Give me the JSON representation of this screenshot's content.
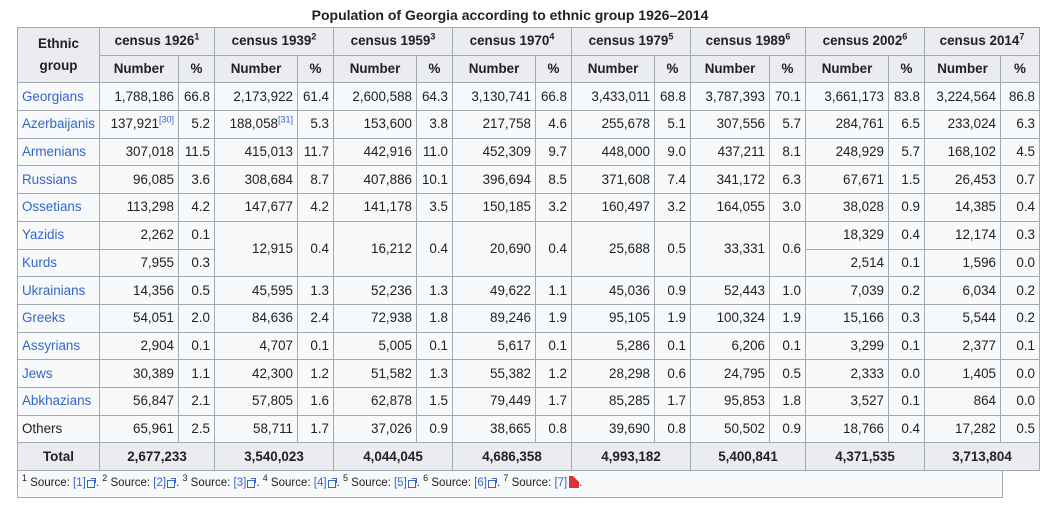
{
  "caption": "Population of Georgia according to ethnic group 1926–2014",
  "header": {
    "ethnic_group": "Ethnic group",
    "number": "Number",
    "percent": "%",
    "censuses": [
      {
        "label": "census 1926",
        "note": "1"
      },
      {
        "label": "census 1939",
        "note": "2"
      },
      {
        "label": "census 1959",
        "note": "3"
      },
      {
        "label": "census 1970",
        "note": "4"
      },
      {
        "label": "census 1979",
        "note": "5"
      },
      {
        "label": "census 1989",
        "note": "6"
      },
      {
        "label": "census 2002",
        "note": "6"
      },
      {
        "label": "census 2014",
        "note": "7"
      }
    ]
  },
  "rows": [
    {
      "name": "Georgians",
      "link": true,
      "vals": [
        [
          "1,788,186",
          "66.8"
        ],
        [
          "2,173,922",
          "61.4"
        ],
        [
          "2,600,588",
          "64.3"
        ],
        [
          "3,130,741",
          "66.8"
        ],
        [
          "3,433,011",
          "68.8"
        ],
        [
          "3,787,393",
          "70.1"
        ],
        [
          "3,661,173",
          "83.8"
        ],
        [
          "3,224,564",
          "86.8"
        ]
      ]
    },
    {
      "name": "Azerbaijanis",
      "link": true,
      "vals": [
        [
          "137,921",
          "5.2"
        ],
        [
          "188,058",
          "5.3"
        ],
        [
          "153,600",
          "3.8"
        ],
        [
          "217,758",
          "4.6"
        ],
        [
          "255,678",
          "5.1"
        ],
        [
          "307,556",
          "5.7"
        ],
        [
          "284,761",
          "6.5"
        ],
        [
          "233,024",
          "6.3"
        ]
      ],
      "refs": [
        "[30]",
        "[31]"
      ]
    },
    {
      "name": "Armenians",
      "link": true,
      "vals": [
        [
          "307,018",
          "11.5"
        ],
        [
          "415,013",
          "11.7"
        ],
        [
          "442,916",
          "11.0"
        ],
        [
          "452,309",
          "9.7"
        ],
        [
          "448,000",
          "9.0"
        ],
        [
          "437,211",
          "8.1"
        ],
        [
          "248,929",
          "5.7"
        ],
        [
          "168,102",
          "4.5"
        ]
      ]
    },
    {
      "name": "Russians",
      "link": true,
      "vals": [
        [
          "96,085",
          "3.6"
        ],
        [
          "308,684",
          "8.7"
        ],
        [
          "407,886",
          "10.1"
        ],
        [
          "396,694",
          "8.5"
        ],
        [
          "371,608",
          "7.4"
        ],
        [
          "341,172",
          "6.3"
        ],
        [
          "67,671",
          "1.5"
        ],
        [
          "26,453",
          "0.7"
        ]
      ]
    },
    {
      "name": "Ossetians",
      "link": true,
      "vals": [
        [
          "113,298",
          "4.2"
        ],
        [
          "147,677",
          "4.2"
        ],
        [
          "141,178",
          "3.5"
        ],
        [
          "150,185",
          "3.2"
        ],
        [
          "160,497",
          "3.2"
        ],
        [
          "164,055",
          "3.0"
        ],
        [
          "38,028",
          "0.9"
        ],
        [
          "14,385",
          "0.4"
        ]
      ]
    },
    {
      "name": "Yazidis",
      "link": true,
      "vals": [
        [
          "2,262",
          "0.1"
        ],
        [
          "12,915",
          "0.4"
        ],
        [
          "16,212",
          "0.4"
        ],
        [
          "20,690",
          "0.4"
        ],
        [
          "25,688",
          "0.5"
        ],
        [
          "33,331",
          "0.6"
        ],
        [
          "18,329",
          "0.4"
        ],
        [
          "12,174",
          "0.3"
        ]
      ]
    },
    {
      "name": "Kurds",
      "link": true,
      "vals": [
        [
          "7,955",
          "0.3"
        ],
        null,
        null,
        null,
        null,
        null,
        [
          "2,514",
          "0.1"
        ],
        [
          "1,596",
          "0.0"
        ]
      ]
    },
    {
      "name": "Ukrainians",
      "link": true,
      "vals": [
        [
          "14,356",
          "0.5"
        ],
        [
          "45,595",
          "1.3"
        ],
        [
          "52,236",
          "1.3"
        ],
        [
          "49,622",
          "1.1"
        ],
        [
          "45,036",
          "0.9"
        ],
        [
          "52,443",
          "1.0"
        ],
        [
          "7,039",
          "0.2"
        ],
        [
          "6,034",
          "0.2"
        ]
      ]
    },
    {
      "name": "Greeks",
      "link": true,
      "vals": [
        [
          "54,051",
          "2.0"
        ],
        [
          "84,636",
          "2.4"
        ],
        [
          "72,938",
          "1.8"
        ],
        [
          "89,246",
          "1.9"
        ],
        [
          "95,105",
          "1.9"
        ],
        [
          "100,324",
          "1.9"
        ],
        [
          "15,166",
          "0.3"
        ],
        [
          "5,544",
          "0.2"
        ]
      ]
    },
    {
      "name": "Assyrians",
      "link": true,
      "vals": [
        [
          "2,904",
          "0.1"
        ],
        [
          "4,707",
          "0.1"
        ],
        [
          "5,005",
          "0.1"
        ],
        [
          "5,617",
          "0.1"
        ],
        [
          "5,286",
          "0.1"
        ],
        [
          "6,206",
          "0.1"
        ],
        [
          "3,299",
          "0.1"
        ],
        [
          "2,377",
          "0.1"
        ]
      ]
    },
    {
      "name": "Jews",
      "link": true,
      "vals": [
        [
          "30,389",
          "1.1"
        ],
        [
          "42,300",
          "1.2"
        ],
        [
          "51,582",
          "1.3"
        ],
        [
          "55,382",
          "1.2"
        ],
        [
          "28,298",
          "0.6"
        ],
        [
          "24,795",
          "0.5"
        ],
        [
          "2,333",
          "0.0"
        ],
        [
          "1,405",
          "0.0"
        ]
      ]
    },
    {
      "name": "Abkhazians",
      "link": true,
      "vals": [
        [
          "56,847",
          "2.1"
        ],
        [
          "57,805",
          "1.6"
        ],
        [
          "62,878",
          "1.5"
        ],
        [
          "79,449",
          "1.7"
        ],
        [
          "85,285",
          "1.7"
        ],
        [
          "95,853",
          "1.8"
        ],
        [
          "3,527",
          "0.1"
        ],
        [
          "864",
          "0.0"
        ]
      ]
    },
    {
      "name": "Others",
      "link": false,
      "vals": [
        [
          "65,961",
          "2.5"
        ],
        [
          "58,711",
          "1.7"
        ],
        [
          "37,026",
          "0.9"
        ],
        [
          "38,665",
          "0.8"
        ],
        [
          "39,690",
          "0.8"
        ],
        [
          "50,502",
          "0.9"
        ],
        [
          "18,766",
          "0.4"
        ],
        [
          "17,282",
          "0.5"
        ]
      ]
    }
  ],
  "total": {
    "label": "Total",
    "values": [
      "2,677,233",
      "3,540,023",
      "4,044,045",
      "4,686,358",
      "4,993,182",
      "5,400,841",
      "4,371,535",
      "3,713,804"
    ]
  },
  "footnotes": [
    {
      "num": "1",
      "text": "Source:",
      "link": "[1]"
    },
    {
      "num": "2",
      "text": "Source:",
      "link": "[2]"
    },
    {
      "num": "3",
      "text": "Source:",
      "link": "[3]"
    },
    {
      "num": "4",
      "text": "Source:",
      "link": "[4]"
    },
    {
      "num": "5",
      "text": "Source:",
      "link": "[5]"
    },
    {
      "num": "6",
      "text": "Source:",
      "link": "[6]"
    },
    {
      "num": "7",
      "text": "Source:",
      "link": "[7]"
    }
  ]
}
